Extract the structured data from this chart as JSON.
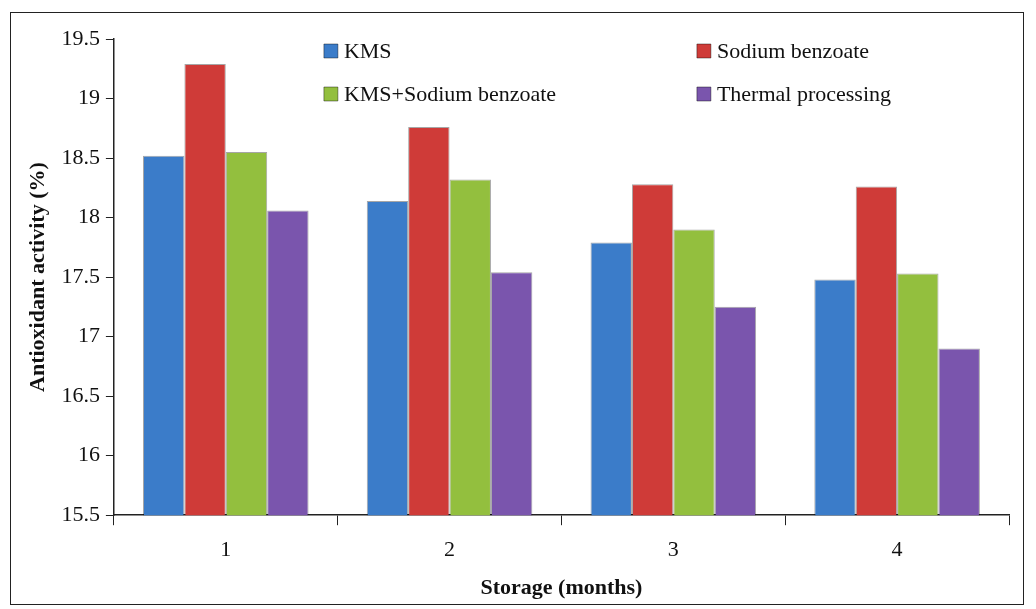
{
  "chart_data": {
    "type": "bar",
    "xlabel": "Storage (months)",
    "ylabel": "Antioxidant activity (%)",
    "categories": [
      "1",
      "2",
      "3",
      "4"
    ],
    "series": [
      {
        "name": "KMS",
        "color": "#3b7cc9",
        "values": [
          18.52,
          18.14,
          17.79,
          17.48
        ]
      },
      {
        "name": "Sodium benzoate",
        "color": "#cf3b38",
        "values": [
          19.29,
          18.76,
          18.28,
          18.26
        ]
      },
      {
        "name": "KMS+Sodium benzoate",
        "color": "#93bf3e",
        "values": [
          18.55,
          18.32,
          17.9,
          17.53
        ]
      },
      {
        "name": "Thermal processing",
        "color": "#7a55ad",
        "values": [
          18.06,
          17.54,
          17.25,
          16.9
        ]
      }
    ],
    "ylim": [
      15.5,
      19.5
    ],
    "yticks": [
      15.5,
      16,
      16.5,
      17,
      17.5,
      18,
      18.5,
      19,
      19.5
    ],
    "grid": false,
    "legend": "top"
  }
}
